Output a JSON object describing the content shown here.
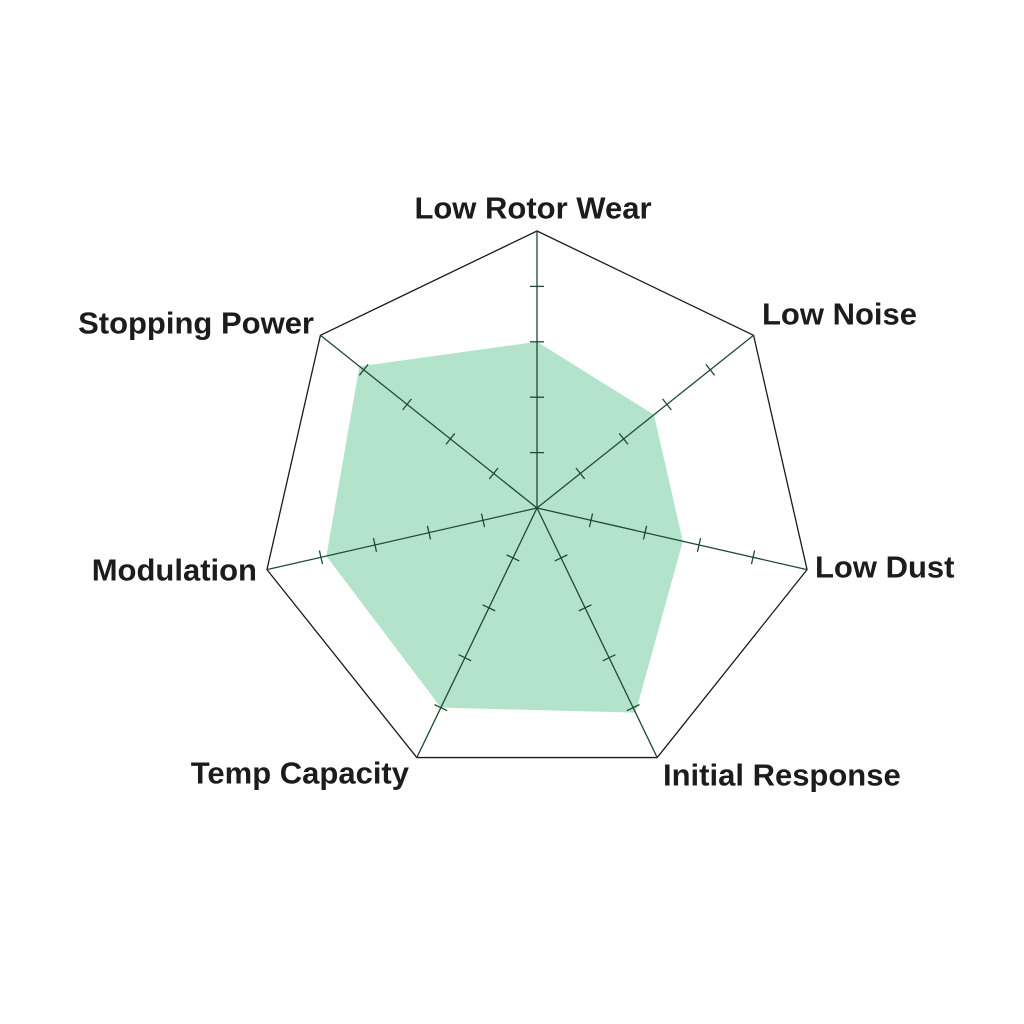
{
  "chart_data": {
    "type": "radar",
    "axes": [
      "Low Rotor Wear",
      "Low Noise",
      "Low Dust",
      "Initial Response",
      "Temp Capacity",
      "Modulation",
      "Stopping Power"
    ],
    "values": [
      3.0,
      2.7,
      2.7,
      4.1,
      4.0,
      3.9,
      4.1
    ],
    "range": [
      0,
      5
    ],
    "ticks": 5,
    "grid": true,
    "legend": "none",
    "colors": {
      "fill": "#b3e4cb",
      "axis": "#1f4a35",
      "frame": "#1a1a1a"
    }
  }
}
